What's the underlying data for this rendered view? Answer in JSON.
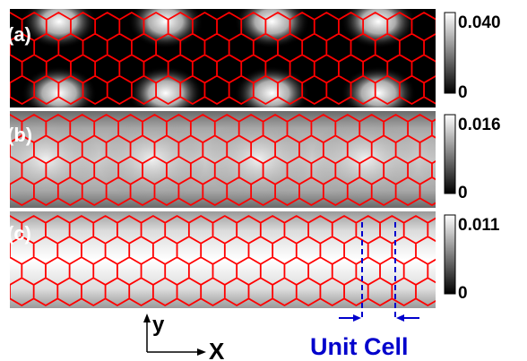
{
  "panels": [
    {
      "id": "a",
      "label": "(a)",
      "colorbar_max": "0.040",
      "colorbar_min": "0",
      "pattern": "periodic-bright-spots"
    },
    {
      "id": "b",
      "label": "(b)",
      "colorbar_max": "0.016",
      "colorbar_min": "0",
      "pattern": "soft-periodic-maxima"
    },
    {
      "id": "c",
      "label": "(c)",
      "colorbar_max": "0.011",
      "colorbar_min": "0",
      "pattern": "uniform-center-band"
    }
  ],
  "lattice": {
    "type": "zigzag-graphene-nanoribbon",
    "color": "#ff0000"
  },
  "axes": {
    "y_label": "y",
    "x_label": "X"
  },
  "unit_cell": {
    "label": "Unit Cell",
    "color": "#0000cc"
  },
  "colormap": [
    "#000000",
    "#ffffff"
  ]
}
